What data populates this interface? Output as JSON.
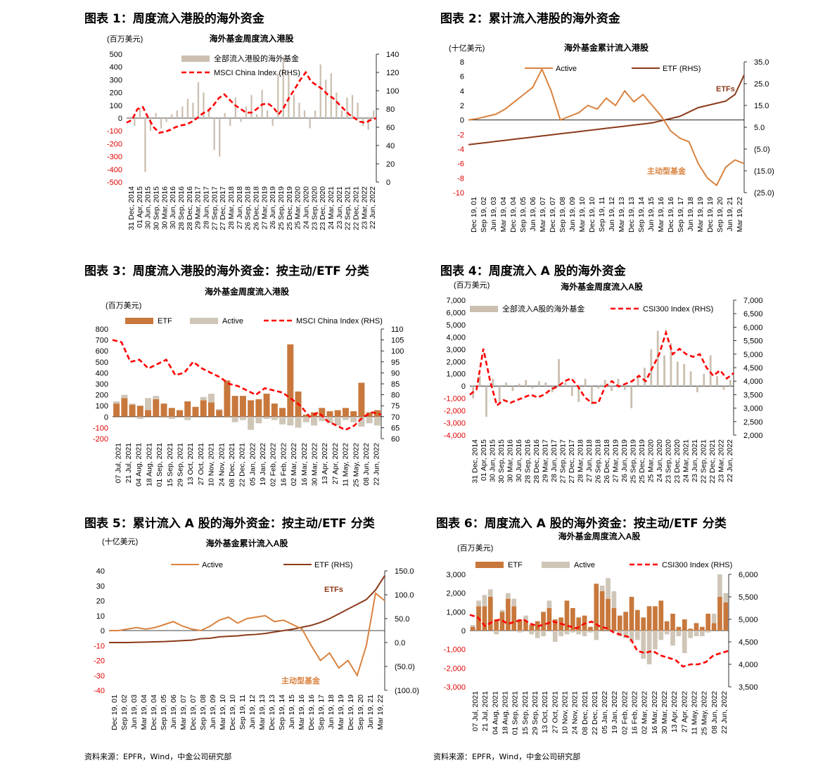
{
  "chart_data": [
    {
      "id": "fig1",
      "type": "bar",
      "figure_title": "图表 1：周度流入港股的海外资金",
      "title": "海外基金周度流入港股",
      "unit": "(百万美元)",
      "y_left": {
        "min": -500,
        "max": 500,
        "ticks": [
          500,
          400,
          300,
          200,
          100,
          0,
          -100,
          -200,
          -300,
          -400,
          -500
        ]
      },
      "y_right": {
        "min": 0,
        "max": 140,
        "ticks": [
          140,
          120,
          100,
          80,
          60,
          40,
          20,
          0
        ]
      },
      "x_ticks": [
        "31 Dec, 2014",
        "01 Apr, 2015",
        "30 Jun, 2015",
        "30 Sep, 2015",
        "30 Mar, 2016",
        "30 Jun, 2016",
        "28 Sep, 2016",
        "28 Dec, 2016",
        "29 Mar, 2017",
        "28 Jun, 2017",
        "27 Sep, 2017",
        "27 Dec, 2017",
        "28 Mar, 2018",
        "27 Jun, 2018",
        "26 Sep, 2018",
        "26 Dec, 2018",
        "27 Mar, 2019",
        "26 Jun, 2019",
        "25 Sep, 2019",
        "25 Dec, 2019",
        "25 Mar, 2020",
        "24 Jun, 2020",
        "23 Sep, 2020",
        "23 Dec, 2020",
        "24 Mar, 2021",
        "23 Jun, 2021",
        "22 Sep, 2021",
        "22 Dec, 2021",
        "23 Mar, 2022",
        "22 Jun, 2022"
      ],
      "legend": [
        "全部流入港股的海外基金",
        "MSCI China Index (RHS)"
      ],
      "bar_series": [
        10,
        -60,
        80,
        -420,
        -100,
        40,
        -80,
        -30,
        30,
        60,
        90,
        150,
        120,
        280,
        200,
        60,
        -250,
        -300,
        40,
        -60,
        160,
        -30,
        90,
        180,
        30,
        220,
        60,
        -60,
        350,
        480,
        340,
        180,
        120,
        60,
        -80,
        60,
        420,
        300,
        350,
        200,
        60,
        160,
        180,
        120,
        -60,
        -90,
        60
      ],
      "line_series": [
        65,
        68,
        80,
        82,
        70,
        60,
        54,
        55,
        57,
        60,
        62,
        63,
        66,
        70,
        75,
        78,
        84,
        92,
        96,
        90,
        84,
        80,
        76,
        76,
        80,
        85,
        86,
        82,
        74,
        82,
        93,
        102,
        112,
        120,
        110,
        106,
        102,
        96,
        92,
        86,
        80,
        74,
        70,
        66,
        65,
        68,
        70
      ]
    },
    {
      "id": "fig2",
      "type": "line",
      "figure_title": "图表 2：累计流入港股的海外资金",
      "title": "海外基金累计流入港股",
      "unit": "(十亿美元)",
      "y_left": {
        "min": -10,
        "max": 8,
        "ticks": [
          8,
          6,
          4,
          2,
          0,
          -2,
          -4,
          -6,
          -8,
          -10
        ]
      },
      "y_right": {
        "min": -25,
        "max": 35,
        "ticks": [
          "35.0",
          "25.0",
          "15.0",
          "5.0",
          "(5.0)",
          "(15.0)",
          "(25.0)"
        ]
      },
      "x_ticks": [
        "Dec 19, 01",
        "Sep 19, 02",
        "Jun 19, 03",
        "Mar 19, 04",
        "Dec 19, 04",
        "Sep 19, 05",
        "Jun 19, 06",
        "Mar 19, 07",
        "Dec 19, 07",
        "Sep 19, 08",
        "Jun 19, 09",
        "Mar 19, 10",
        "Dec 19, 10",
        "Sep 19, 11",
        "Jun 19, 12",
        "Mar 19, 13",
        "Dec 19, 13",
        "Sep 19, 14",
        "Jun 19, 15",
        "Mar 19, 16",
        "Dec 19, 16",
        "Sep 19, 17",
        "Jun 19, 18",
        "Mar 19, 19",
        "Dec 19, 19",
        "Sep 19, 20",
        "Jun 19, 21",
        "Mar 19, 22"
      ],
      "legend": [
        "Active",
        "ETF (RHS)"
      ],
      "annotations": [
        "ETFs",
        "主动型基金"
      ],
      "series": [
        {
          "name": "Active",
          "values": [
            0,
            0.2,
            0.5,
            0.8,
            1.5,
            2.5,
            3.5,
            4.5,
            7,
            4,
            0,
            0.5,
            1,
            2,
            1.5,
            3,
            2,
            4,
            2.5,
            3.5,
            2,
            0.5,
            -1.5,
            -2.5,
            -3,
            -6,
            -8,
            -9,
            -6.5,
            -5.5,
            -6
          ]
        },
        {
          "name": "ETF (RHS)",
          "values": [
            -3,
            -2.5,
            -2,
            -1.5,
            -1,
            -0.5,
            0,
            0.5,
            1,
            1.5,
            2,
            2.5,
            3,
            3.5,
            4,
            4.5,
            5,
            5.5,
            6,
            6.5,
            7,
            8,
            9,
            10,
            12,
            14,
            15,
            16,
            17,
            20,
            29
          ]
        }
      ]
    },
    {
      "id": "fig3",
      "type": "bar",
      "figure_title": "图表 3：周度流入港股的海外资金：按主动/ETF 分类",
      "title": "海外基金周度流入港股",
      "unit": "(百万美元)",
      "y_left": {
        "min": -200,
        "max": 800,
        "ticks": [
          800,
          700,
          600,
          500,
          400,
          300,
          200,
          100,
          0,
          -100,
          -200
        ]
      },
      "y_right": {
        "min": 60,
        "max": 110,
        "ticks": [
          110,
          105,
          100,
          95,
          90,
          85,
          80,
          75,
          70,
          65,
          60
        ]
      },
      "x_ticks": [
        "07 Jul, 2021",
        "21 Jul, 2021",
        "04 Aug, 2021",
        "18 Aug, 2021",
        "01 Sep, 2021",
        "15 Sep, 2021",
        "29 Sep, 2021",
        "13 Oct, 2021",
        "27 Oct, 2021",
        "10 Nov, 2021",
        "24 Nov, 2021",
        "08 Dec, 2021",
        "22 Dec, 2021",
        "05 Jan, 2022",
        "19 Jan, 2022",
        "02 Feb, 2022",
        "16 Feb, 2022",
        "02 Mar, 2022",
        "16 Mar, 2022",
        "30 Mar, 2022",
        "13 Apr, 2022",
        "27 Apr, 2022",
        "11 May, 2022",
        "25 May, 2022",
        "08 Jun, 2022",
        "22 Jun, 2022"
      ],
      "legend": [
        "ETF",
        "Active",
        "MSCI China Index (RHS)"
      ],
      "series": [
        {
          "name": "ETF",
          "values": [
            120,
            170,
            110,
            100,
            60,
            160,
            120,
            80,
            60,
            140,
            90,
            150,
            130,
            60,
            330,
            190,
            190,
            150,
            160,
            210,
            120,
            80,
            660,
            230,
            20,
            40,
            80,
            50,
            60,
            80,
            50,
            310,
            40,
            60
          ]
        },
        {
          "name": "Active",
          "values": [
            20,
            30,
            10,
            -20,
            110,
            30,
            -10,
            -20,
            0,
            -30,
            0,
            30,
            80,
            10,
            -10,
            -50,
            -30,
            -120,
            -60,
            -20,
            -30,
            -70,
            -80,
            -100,
            -50,
            -80,
            -40,
            -60,
            -80,
            -30,
            -50,
            -90,
            -60,
            -80
          ]
        },
        {
          "name": "MSCI China Index (RHS)",
          "values": [
            105,
            104,
            95,
            96,
            92,
            94,
            96,
            89,
            90,
            95,
            92,
            90,
            88,
            85,
            84,
            82,
            80,
            83,
            82,
            81,
            78,
            75,
            70,
            72,
            68,
            66,
            64,
            66,
            70,
            72,
            71
          ]
        }
      ]
    },
    {
      "id": "fig4",
      "type": "bar",
      "figure_title": "图表 4：周度流入 A 股的海外资金",
      "title": "海外基金周度流入A股",
      "unit": "(百万美元)",
      "y_left": {
        "min": -4000,
        "max": 7000,
        "ticks": [
          "7,000",
          "6,000",
          "5,000",
          "4,000",
          "3,000",
          "2,000",
          "1,000",
          "0",
          "-1,000",
          "-2,000",
          "-3,000",
          "-4,000"
        ]
      },
      "y_right": {
        "min": 2000,
        "max": 7000,
        "ticks": [
          "7,000",
          "6,500",
          "6,000",
          "5,500",
          "5,000",
          "4,500",
          "4,000",
          "3,500",
          "3,000",
          "2,500",
          "2,000"
        ]
      },
      "x_ticks": [
        "31 Dec, 2014",
        "01 Apr, 2015",
        "30 Jun, 2015",
        "30 Sep, 2015",
        "30 Mar, 2016",
        "30 Jun, 2016",
        "28 Sep, 2016",
        "28 Dec, 2016",
        "29 Mar, 2017",
        "28 Jun, 2017",
        "27 Sep, 2017",
        "27 Dec, 2017",
        "28 Mar, 2018",
        "27 Jun, 2018",
        "26 Sep, 2018",
        "26 Dec, 2018",
        "27 Mar, 2019",
        "26 Jun, 2019",
        "25 Sep, 2019",
        "25 Dec, 2019",
        "25 Mar, 2020",
        "24 Jun, 2020",
        "23 Sep, 2020",
        "23 Dec, 2020",
        "24 Mar, 2021",
        "23 Jun, 2021",
        "22 Sep, 2021",
        "22 Dec, 2021",
        "23 Mar, 2022",
        "22 Jun, 2022"
      ],
      "legend": [
        "全部流入A股的海外基金",
        "CSI300 Index (RHS)"
      ],
      "bar_series": [
        -1000,
        800,
        -2500,
        600,
        -1500,
        300,
        -400,
        200,
        500,
        -200,
        400,
        300,
        -500,
        2200,
        300,
        -800,
        -1300,
        600,
        -1500,
        -200,
        500,
        -400,
        600,
        -300,
        -1800,
        800,
        1500,
        3000,
        4500,
        2500,
        3500,
        2000,
        1800,
        1200,
        -500,
        1000,
        2500,
        800,
        -300,
        500
      ],
      "line_series": [
        3500,
        3700,
        5200,
        4000,
        3100,
        3300,
        3200,
        3300,
        3400,
        3500,
        3400,
        3500,
        3700,
        3800,
        4000,
        4100,
        3800,
        3400,
        3200,
        3200,
        3800,
        4000,
        3800,
        3900,
        4000,
        4200,
        4000,
        4500,
        5000,
        5800,
        5000,
        5200,
        5000,
        4900,
        5000,
        4500,
        4200,
        4400,
        4100,
        4300
      ]
    },
    {
      "id": "fig5",
      "type": "line",
      "figure_title": "图表 5：累计流入 A 股的海外资金：按主动/ETF 分类",
      "title": "海外基金累计流入A股",
      "unit": "(十亿美元)",
      "y_left": {
        "min": -40,
        "max": 40,
        "ticks": [
          40,
          30,
          20,
          10,
          0,
          -10,
          -20,
          -30,
          -40
        ]
      },
      "y_right": {
        "min": -100,
        "max": 150,
        "ticks": [
          "150.0",
          "100.0",
          "50.0",
          "0.0",
          "(50.0)",
          "(100.0)"
        ]
      },
      "x_ticks": [
        "Dec 19, 01",
        "Sep 19, 02",
        "Jun 19, 03",
        "Mar 19, 04",
        "Dec 19, 04",
        "Sep 19, 05",
        "Jun 19, 06",
        "Mar 19, 07",
        "Dec 19, 07",
        "Sep 19, 08",
        "Jun 19, 09",
        "Mar 19, 10",
        "Dec 19, 10",
        "Sep 19, 11",
        "Jun 19, 12",
        "Mar 19, 13",
        "Dec 19, 13",
        "Sep 19, 14",
        "Jun 19, 15",
        "Mar 19, 16",
        "Dec 19, 16",
        "Sep 19, 17",
        "Jun 19, 18",
        "Mar 19, 19",
        "Dec 19, 19",
        "Sep 19, 20",
        "Jun 19, 21",
        "Mar 19, 22"
      ],
      "legend": [
        "Active",
        "ETF (RHS)"
      ],
      "annotations": [
        "ETFs",
        "主动型基金"
      ],
      "series": [
        {
          "name": "Active",
          "values": [
            0,
            0,
            1,
            2,
            1,
            2,
            4,
            6,
            3,
            1,
            0,
            3,
            7,
            9,
            5,
            8,
            9,
            10,
            6,
            7,
            4,
            1,
            -10,
            -20,
            -15,
            -25,
            -20,
            -30,
            -10,
            25,
            20
          ]
        },
        {
          "name": "ETF (RHS)",
          "values": [
            0,
            0,
            0,
            0.5,
            1,
            1.5,
            2,
            3,
            4,
            5,
            8,
            9,
            12,
            13,
            14,
            16,
            17,
            19,
            22,
            25,
            28,
            32,
            36,
            42,
            50,
            60,
            70,
            80,
            90,
            110,
            140
          ]
        }
      ]
    },
    {
      "id": "fig6",
      "type": "bar",
      "figure_title": "图表 6：周度流入 A 股的海外资金：按主动/ETF 分类",
      "title": "海外基金周度流入A股",
      "unit": "(百万美元)",
      "y_left": {
        "min": -3000,
        "max": 3000,
        "ticks": [
          "3,000",
          "2,000",
          "1,000",
          "0",
          "-1,000",
          "-2,000",
          "-3,000"
        ]
      },
      "y_right": {
        "min": 3500,
        "max": 6000,
        "ticks": [
          "6,000",
          "5,500",
          "5,000",
          "4,500",
          "4,000",
          "3,500"
        ]
      },
      "x_ticks": [
        "07 Jul, 2021",
        "21 Jul, 2021",
        "04 Aug, 2021",
        "18 Aug, 2021",
        "01 Sep, 2021",
        "15 Sep, 2021",
        "29 Sep, 2021",
        "13 Oct, 2021",
        "27 Oct, 2021",
        "10 Nov, 2021",
        "24 Nov, 2021",
        "08 Dec, 2021",
        "22 Dec, 2021",
        "05 Jan, 2022",
        "19 Jan, 2022",
        "02 Feb, 2022",
        "16 Feb, 2022",
        "02 Mar, 2022",
        "16 Mar, 2022",
        "30 Mar, 2022",
        "13 Apr, 2022",
        "27 Apr, 2022",
        "11 May, 2022",
        "25 May, 2022",
        "08 Jun, 2022",
        "22 Jun, 2022"
      ],
      "legend": [
        "ETF",
        "Active",
        "CSI300 Index (RHS)"
      ],
      "series": [
        {
          "name": "ETF",
          "values": [
            200,
            1300,
            1300,
            1800,
            600,
            1000,
            1700,
            1300,
            600,
            500,
            300,
            500,
            1000,
            1200,
            600,
            700,
            1600,
            1200,
            700,
            800,
            200,
            2500,
            2100,
            1700,
            1200,
            800,
            1000,
            1800,
            1100,
            700,
            1300,
            1300,
            1600,
            500,
            900,
            200,
            600,
            100,
            400,
            200,
            900,
            400,
            1800,
            1500
          ]
        },
        {
          "name": "Active",
          "values": [
            100,
            300,
            600,
            400,
            -200,
            100,
            300,
            400,
            -100,
            300,
            -200,
            -400,
            -300,
            400,
            -600,
            -300,
            -200,
            -100,
            -200,
            -300,
            -100,
            -500,
            300,
            1100,
            900,
            -300,
            -400,
            -600,
            -500,
            -1500,
            -1800,
            -1000,
            -500,
            -200,
            -800,
            -300,
            -1200,
            -400,
            -300,
            -300,
            -100,
            500,
            1200,
            500
          ]
        },
        {
          "name": "CSI300 Index (RHS)",
          "values": [
            5100,
            5050,
            4850,
            4950,
            5000,
            4900,
            4950,
            5000,
            4900,
            4850,
            4900,
            4950,
            4900,
            4850,
            4800,
            4900,
            4950,
            4850,
            4800,
            4700,
            4650,
            4600,
            4300,
            4250,
            4300,
            4200,
            4150,
            4100,
            3950,
            4000,
            4000,
            4050,
            4200,
            4250,
            4300
          ]
        }
      ]
    }
  ],
  "source_left": "资料来源：EPFR，Wind，中金公司研究部",
  "source_right": "资料来源：EPFR，Wind，中金公司研究部",
  "colors": {
    "tan": "#cbbfb0",
    "red": "#ff0000",
    "orange": "#d9823f",
    "brown": "#8b3a1a",
    "etf_bar": "#c8783c",
    "active_bar": "#cfc6b8"
  }
}
